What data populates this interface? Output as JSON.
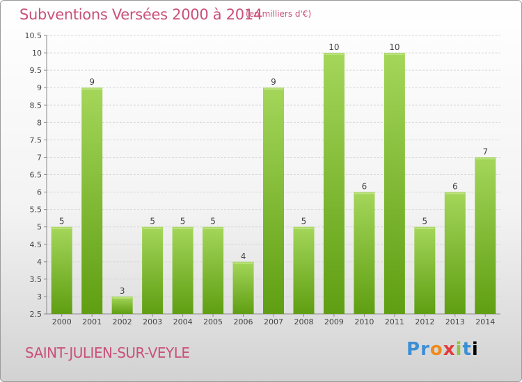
{
  "header": {
    "title": "Subventions Versées 2000 à 2014",
    "unit": "(en milliers d'€)"
  },
  "footer": {
    "location": "SAINT-JULIEN-SUR-VEYLE",
    "logo": "Proxiti"
  },
  "colors": {
    "bar_light": "#9fd451",
    "bar_dark": "#5f9e12",
    "title": "#c9507a",
    "grid": "#cccccc"
  },
  "chart_data": {
    "type": "bar",
    "title": "Subventions Versées 2000 à 2014",
    "subtitle": "(en milliers d'€)",
    "categories": [
      "2000",
      "2001",
      "2002",
      "2003",
      "2004",
      "2005",
      "2006",
      "2007",
      "2008",
      "2009",
      "2010",
      "2011",
      "2012",
      "2013",
      "2014"
    ],
    "values": [
      5,
      9,
      3,
      5,
      5,
      5,
      4,
      9,
      5,
      10,
      6,
      10,
      5,
      6,
      7
    ],
    "xlabel": "",
    "ylabel": "",
    "ylim": [
      2.5,
      10.5
    ],
    "yticks": [
      "2.5",
      "3",
      "3.5",
      "4",
      "4.5",
      "5",
      "5.5",
      "6",
      "6.5",
      "7",
      "7.5",
      "8",
      "8.5",
      "9",
      "9.5",
      "10",
      "10.5"
    ],
    "grid": true,
    "legend": "none"
  }
}
